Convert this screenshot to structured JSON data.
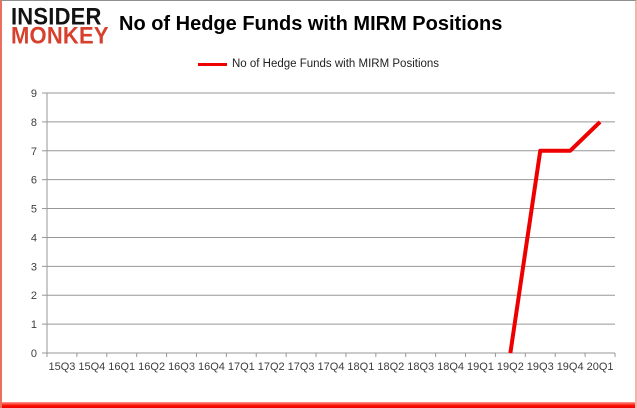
{
  "logo": {
    "line1": "INSIDER",
    "line2": "MONKEY",
    "color_line1": "#121212",
    "color_line2": "#d8402e"
  },
  "header": {
    "title": "No of Hedge Funds with MIRM Positions"
  },
  "legend": {
    "label": "No of Hedge Funds with MIRM Positions",
    "line_color": "#ee0000"
  },
  "chart_data": {
    "type": "line",
    "title": "No of Hedge Funds with MIRM Positions",
    "categories": [
      "15Q3",
      "15Q4",
      "16Q1",
      "16Q2",
      "16Q3",
      "16Q4",
      "17Q1",
      "17Q2",
      "17Q3",
      "17Q4",
      "18Q1",
      "18Q2",
      "18Q3",
      "18Q4",
      "19Q1",
      "19Q2",
      "19Q3",
      "19Q4",
      "20Q1"
    ],
    "series": [
      {
        "name": "No of Hedge Funds with MIRM Positions",
        "color": "#ee0000",
        "values": [
          null,
          null,
          null,
          null,
          null,
          null,
          null,
          null,
          null,
          null,
          null,
          null,
          null,
          null,
          null,
          0,
          7,
          7,
          8
        ]
      }
    ],
    "xlabel": "",
    "ylabel": "",
    "ylim": [
      0,
      9
    ],
    "ytick_step": 1,
    "yticks": [
      0,
      1,
      2,
      3,
      4,
      5,
      6,
      7,
      8,
      9
    ],
    "grid": "horizontal",
    "legend_position": "top-center",
    "axis_color": "#979797",
    "tick_label_color": "#3d3d3d",
    "tick_label_font_size": 11,
    "line_width": 4
  }
}
